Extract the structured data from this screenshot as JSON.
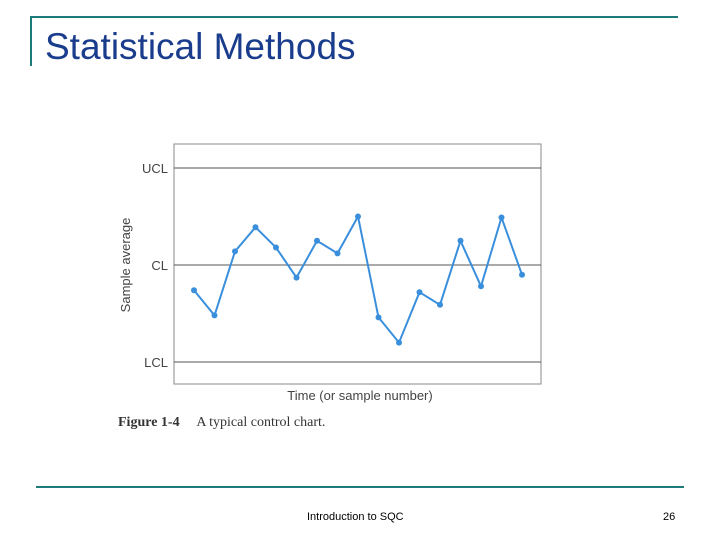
{
  "slide": {
    "title": "Statistical Methods",
    "footer": "Introduction to SQC",
    "page_number": "26"
  },
  "caption": {
    "figure_label": "Figure 1-4",
    "text": "A typical control chart."
  },
  "colors": {
    "accent_rule": "#1f7a7a",
    "title": "#1a3c8c",
    "series": "#3a8fdc",
    "grid": "#555555"
  },
  "chart_data": {
    "type": "line",
    "title": "",
    "xlabel": "Time (or sample number)",
    "ylabel": "Sample average",
    "y_tick_labels": [
      {
        "label": "UCL",
        "value": 1.0
      },
      {
        "label": "CL",
        "value": 0.0
      },
      {
        "label": "LCL",
        "value": -1.0
      }
    ],
    "ylim": [
      -1.2,
      1.25
    ],
    "x": [
      1,
      2,
      3,
      4,
      5,
      6,
      7,
      8,
      9,
      10,
      11,
      12,
      13,
      14,
      15,
      16,
      17
    ],
    "values": [
      -0.26,
      -0.52,
      0.14,
      0.39,
      0.18,
      -0.13,
      0.25,
      0.12,
      0.5,
      -0.54,
      -0.8,
      -0.28,
      -0.41,
      0.25,
      -0.22,
      0.49,
      -0.1
    ],
    "grid": "horizontal at control limits",
    "legend": "none"
  }
}
